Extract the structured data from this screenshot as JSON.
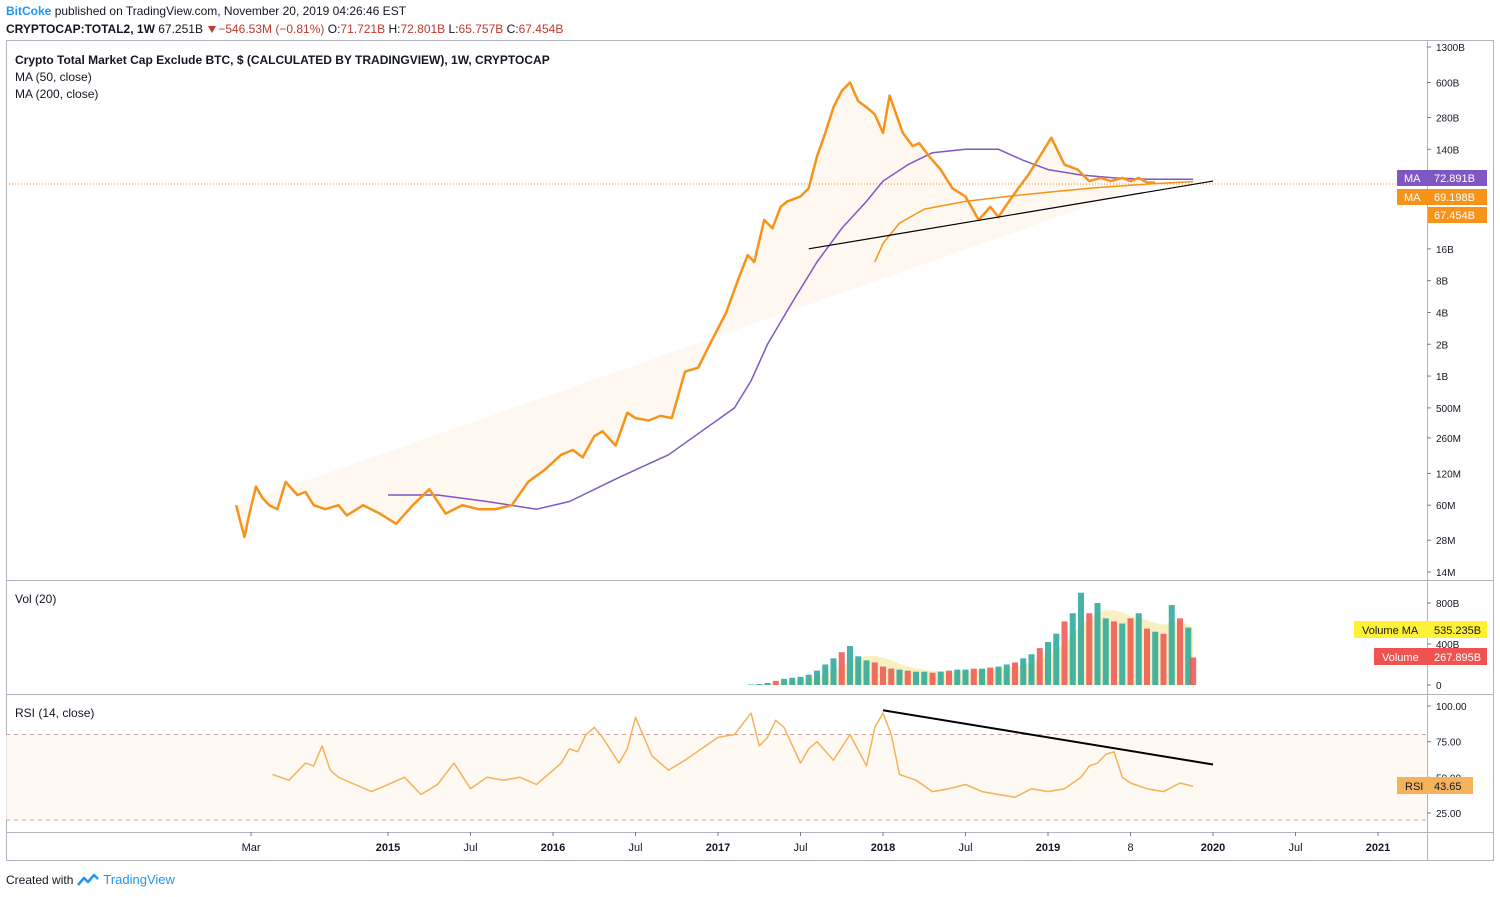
{
  "header": {
    "author": "BitCoke",
    "published": "published on TradingView.com, November 20, 2019 04:26:46 EST",
    "symbol": "CRYPTOCAP:TOTAL2, 1W",
    "last": "67.251B",
    "change": "−546.53M (−0.81%)",
    "o_label": "O:",
    "o": "71.721B",
    "h_label": "H:",
    "h": "72.801B",
    "l_label": "L:",
    "l": "65.757B",
    "c_label": "C:",
    "c": "67.454B"
  },
  "footer": {
    "created": "Created with",
    "brand": "TradingView"
  },
  "colors": {
    "price": "#f7931a",
    "ma50": "#7e57c2",
    "ma200": "#f7931a",
    "vol_up": "#26a69a",
    "vol_down": "#ef5350",
    "vol_ma": "#f5e9a6",
    "rsi": "#f5b25a",
    "trend": "#000000",
    "grid": "#e0e3eb"
  },
  "chart_data": [
    {
      "type": "line",
      "title": "Crypto Total Market Cap Exclude BTC, $ (CALCULATED BY TRADINGVIEW), 1W, CRYPTOCAP",
      "legend": [
        "MA (50, close)",
        "MA (200, close)"
      ],
      "y_scale": "log",
      "y_ticks": [
        "1300B",
        "600B",
        "280B",
        "140B",
        "16B",
        "8B",
        "4B",
        "2B",
        "1B",
        "500M",
        "260M",
        "120M",
        "60M",
        "28M",
        "14M"
      ],
      "x_ticks": [
        "Mar",
        "2015",
        "Jul",
        "2016",
        "Jul",
        "2017",
        "Jul",
        "2018",
        "Jul",
        "2019",
        "8",
        "2020",
        "Jul",
        "2021"
      ],
      "price_x": [
        2014.08,
        2014.1,
        2014.13,
        2014.16,
        2014.2,
        2014.24,
        2014.28,
        2014.33,
        2014.38,
        2014.45,
        2014.5,
        2014.55,
        2014.62,
        2014.7,
        2014.75,
        2014.85,
        2014.95,
        2015.05,
        2015.15,
        2015.25,
        2015.35,
        2015.45,
        2015.55,
        2015.65,
        2015.75,
        2015.85,
        2015.95,
        2016.05,
        2016.12,
        2016.18,
        2016.25,
        2016.3,
        2016.38,
        2016.45,
        2016.5,
        2016.58,
        2016.65,
        2016.72,
        2016.8,
        2016.88,
        2016.95,
        2017.05,
        2017.12,
        2017.18,
        2017.22,
        2017.28,
        2017.33,
        2017.38,
        2017.42,
        2017.5,
        2017.55,
        2017.6,
        2017.65,
        2017.7,
        2017.75,
        2017.8,
        2017.85,
        2017.9,
        2017.95,
        2018.0,
        2018.04,
        2018.08,
        2018.12,
        2018.18,
        2018.22,
        2018.28,
        2018.35,
        2018.42,
        2018.5,
        2018.58,
        2018.65,
        2018.7,
        2018.75,
        2018.82,
        2018.88,
        2018.95,
        2019.02,
        2019.1,
        2019.18,
        2019.25,
        2019.32,
        2019.38,
        2019.45,
        2019.5,
        2019.55,
        2019.6,
        2019.65,
        2019.72,
        2019.78,
        2019.85,
        2019.88
      ],
      "price_y": [
        60,
        45,
        30,
        50,
        90,
        70,
        60,
        55,
        100,
        75,
        80,
        60,
        55,
        60,
        48,
        60,
        50,
        40,
        60,
        85,
        50,
        60,
        55,
        55,
        60,
        100,
        130,
        180,
        200,
        170,
        270,
        300,
        220,
        450,
        400,
        380,
        420,
        400,
        1100,
        1200,
        2000,
        4000,
        8000,
        14000,
        12000,
        30000,
        25000,
        40000,
        45000,
        50000,
        60000,
        120000,
        200000,
        350000,
        500000,
        600000,
        400000,
        350000,
        300000,
        200000,
        450000,
        300000,
        200000,
        150000,
        160000,
        120000,
        90000,
        60000,
        50000,
        30000,
        40000,
        32000,
        42000,
        60000,
        80000,
        120000,
        180000,
        100000,
        90000,
        70000,
        75000,
        70000,
        75000,
        70000,
        75000,
        68000,
        67454
      ],
      "ma50_x": [
        2015.0,
        2015.3,
        2015.6,
        2015.9,
        2016.1,
        2016.4,
        2016.7,
        2016.9,
        2017.1,
        2017.2,
        2017.3,
        2017.45,
        2017.6,
        2017.75,
        2017.9,
        2018.0,
        2018.15,
        2018.3,
        2018.5,
        2018.7,
        2018.85,
        2019.0,
        2019.2,
        2019.4,
        2019.6,
        2019.88
      ],
      "ma50_y": [
        75,
        75,
        65,
        55,
        65,
        110,
        180,
        300,
        500,
        900,
        2000,
        5000,
        12000,
        25000,
        45000,
        70000,
        100000,
        130000,
        140000,
        140000,
        110000,
        90000,
        80000,
        75000,
        73000,
        72891
      ],
      "ma200_x": [
        2017.95,
        2018.0,
        2018.1,
        2018.25,
        2018.5,
        2018.75,
        2019.0,
        2019.25,
        2019.5,
        2019.7,
        2019.88
      ],
      "ma200_y": [
        12000,
        18000,
        28000,
        38000,
        45000,
        50000,
        55000,
        60000,
        64000,
        67000,
        69198
      ],
      "trend_start": [
        2017.55,
        16000
      ],
      "trend_end": [
        2020.0,
        70000
      ],
      "labels": {
        "ma50_name": "MA",
        "ma50_value": "72.891B",
        "ma200_name": "MA",
        "ma200_value": "69.198B",
        "close_value": "67.454B"
      }
    },
    {
      "type": "bar",
      "title": "Vol (20)",
      "y_ticks": [
        "800B",
        "400B",
        "0"
      ],
      "volume_ma_label": "Volume MA",
      "volume_ma_value": "535.235B",
      "volume_label": "Volume",
      "volume_value": "267.895B",
      "vol_x": [
        2017.2,
        2017.25,
        2017.3,
        2017.35,
        2017.4,
        2017.45,
        2017.5,
        2017.55,
        2017.6,
        2017.65,
        2017.7,
        2017.75,
        2017.8,
        2017.85,
        2017.9,
        2017.95,
        2018.0,
        2018.05,
        2018.1,
        2018.15,
        2018.2,
        2018.25,
        2018.3,
        2018.35,
        2018.4,
        2018.45,
        2018.5,
        2018.55,
        2018.6,
        2018.65,
        2018.7,
        2018.75,
        2018.8,
        2018.85,
        2018.9,
        2018.95,
        2019.0,
        2019.05,
        2019.1,
        2019.15,
        2019.2,
        2019.25,
        2019.3,
        2019.35,
        2019.4,
        2019.45,
        2019.5,
        2019.55,
        2019.6,
        2019.65,
        2019.7,
        2019.75,
        2019.8,
        2019.85,
        2019.88
      ],
      "vol_y": [
        5,
        10,
        20,
        40,
        60,
        70,
        80,
        100,
        140,
        200,
        260,
        320,
        380,
        280,
        240,
        220,
        180,
        160,
        150,
        140,
        130,
        130,
        120,
        130,
        140,
        150,
        150,
        160,
        160,
        170,
        180,
        200,
        220,
        260,
        300,
        360,
        420,
        500,
        620,
        700,
        900,
        700,
        800,
        650,
        620,
        600,
        650,
        700,
        550,
        520,
        500,
        780,
        650,
        560,
        268
      ],
      "vol_up": [
        true,
        true,
        true,
        false,
        true,
        true,
        true,
        true,
        true,
        true,
        true,
        false,
        true,
        true,
        true,
        false,
        false,
        false,
        true,
        false,
        true,
        true,
        false,
        true,
        false,
        true,
        true,
        false,
        true,
        false,
        true,
        true,
        false,
        true,
        true,
        false,
        true,
        true,
        false,
        true,
        true,
        false,
        true,
        true,
        false,
        true,
        false,
        true,
        false,
        true,
        false,
        true,
        false,
        true,
        false
      ]
    },
    {
      "type": "line",
      "title": "RSI (14, close)",
      "y_ticks": [
        "100.00",
        "75.00",
        "50.00",
        "25.00"
      ],
      "rsi_label": "RSI",
      "rsi_value": "43.65",
      "rsi_x": [
        2014.3,
        2014.4,
        2014.5,
        2014.55,
        2014.6,
        2014.65,
        2014.7,
        2014.8,
        2014.9,
        2015.0,
        2015.1,
        2015.2,
        2015.3,
        2015.4,
        2015.5,
        2015.6,
        2015.7,
        2015.8,
        2015.9,
        2016.0,
        2016.05,
        2016.1,
        2016.15,
        2016.2,
        2016.25,
        2016.3,
        2016.4,
        2016.45,
        2016.5,
        2016.6,
        2016.7,
        2016.8,
        2016.9,
        2017.0,
        2017.1,
        2017.2,
        2017.25,
        2017.3,
        2017.35,
        2017.4,
        2017.5,
        2017.55,
        2017.6,
        2017.7,
        2017.8,
        2017.9,
        2017.95,
        2018.0,
        2018.05,
        2018.1,
        2018.2,
        2018.3,
        2018.4,
        2018.5,
        2018.6,
        2018.7,
        2018.8,
        2018.9,
        2019.0,
        2019.1,
        2019.2,
        2019.25,
        2019.3,
        2019.35,
        2019.4,
        2019.45,
        2019.5,
        2019.6,
        2019.7,
        2019.8,
        2019.88
      ],
      "rsi_y": [
        52,
        48,
        60,
        58,
        72,
        55,
        50,
        45,
        40,
        45,
        50,
        38,
        45,
        60,
        42,
        50,
        48,
        50,
        45,
        55,
        60,
        70,
        68,
        80,
        85,
        78,
        60,
        70,
        92,
        65,
        55,
        62,
        70,
        78,
        80,
        95,
        72,
        78,
        90,
        85,
        60,
        70,
        75,
        62,
        80,
        58,
        85,
        95,
        80,
        52,
        48,
        40,
        42,
        45,
        40,
        38,
        36,
        42,
        40,
        42,
        50,
        58,
        60,
        66,
        68,
        50,
        46,
        42,
        40,
        46,
        43.65
      ],
      "trend_start": [
        2018.0,
        97
      ],
      "trend_end": [
        2020.0,
        59
      ]
    }
  ]
}
